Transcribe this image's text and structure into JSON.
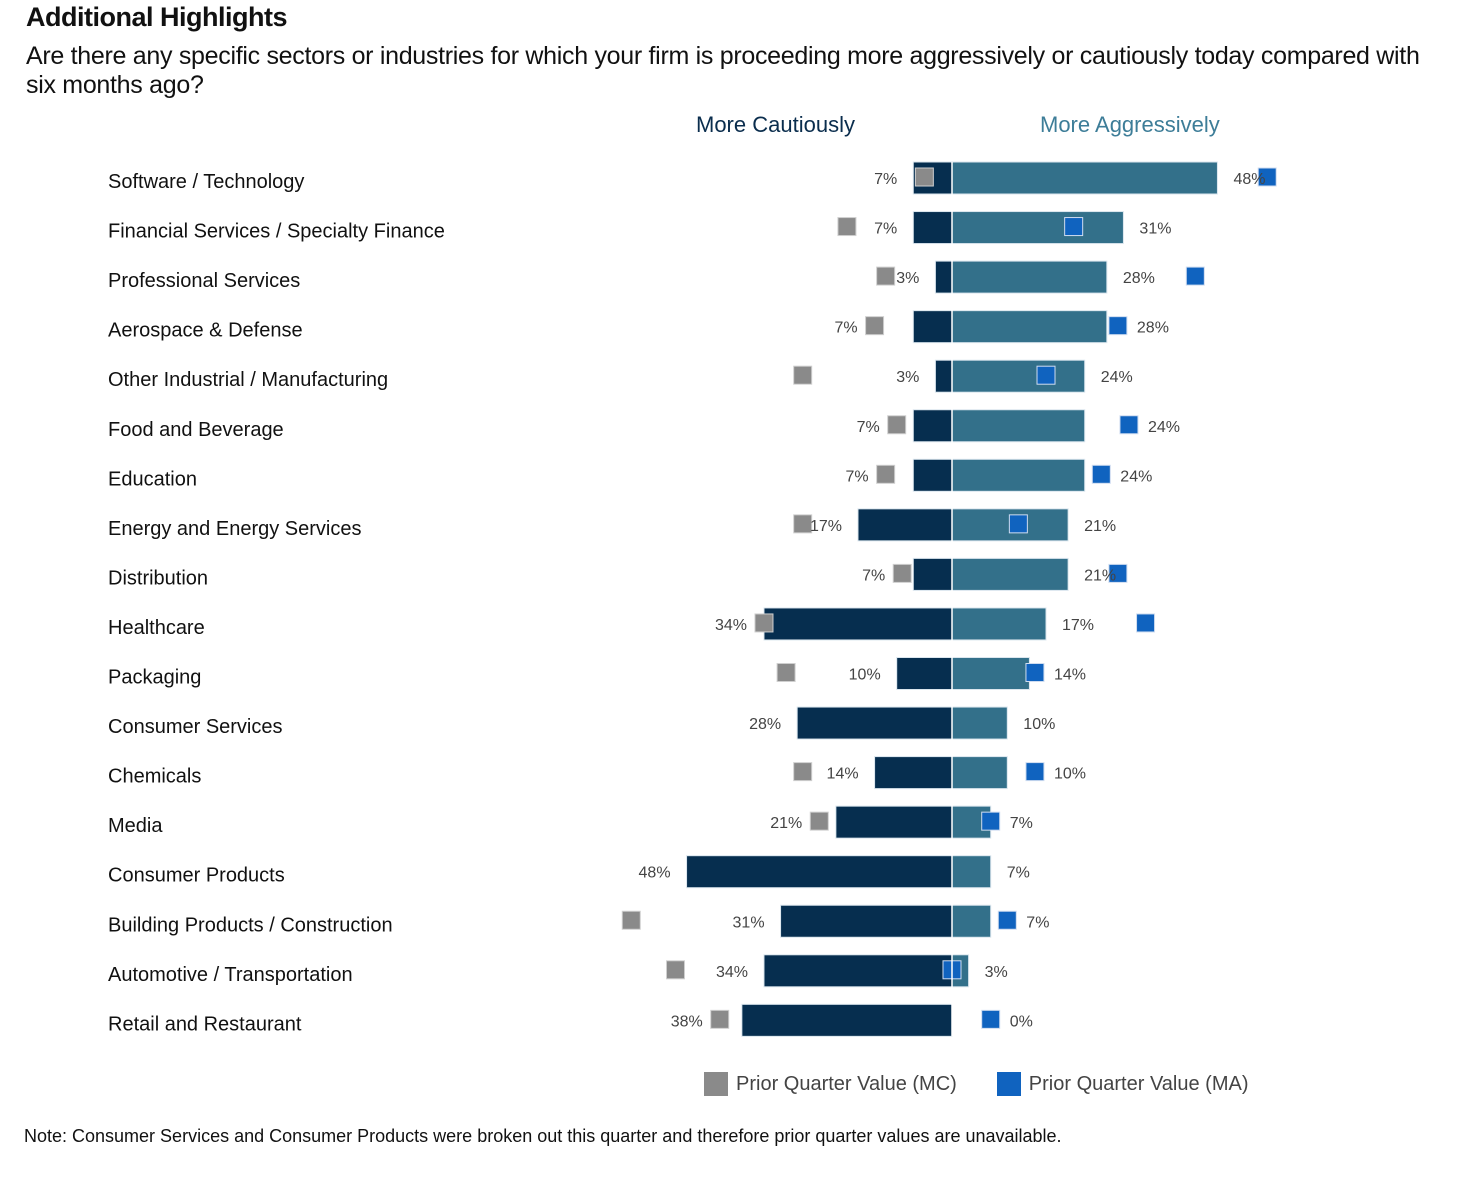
{
  "header": {
    "title": "Additional Highlights",
    "question": "Are there any specific sectors or industries for which your firm is proceeding more aggressively or cautiously today compared with six months ago?"
  },
  "legend": {
    "mc_label": "Prior Quarter Value (MC)",
    "ma_label": "Prior Quarter Value (MA)"
  },
  "note": "Note: Consumer Services and Consumer Products were broken out this quarter and therefore prior quarter values are unavailable.",
  "colors": {
    "cautious_bar": "#062e4f",
    "aggressive_bar": "#33708a",
    "prior_mc": "#8a8a8a",
    "prior_ma": "#1063bf",
    "mc_header": "#0a2d4d",
    "ma_header": "#3d7d98"
  },
  "chart_data": {
    "type": "bar",
    "orientation": "horizontal-diverging",
    "title": "Additional Highlights",
    "subtitle": "Are there any specific sectors or industries for which your firm is proceeding more aggressively or cautiously today compared with six months ago?",
    "xlabel": "",
    "ylabel": "",
    "unit": "%",
    "xlim": [
      -60,
      60
    ],
    "grid": false,
    "legend_position": "bottom",
    "column_headers": {
      "left": "More Cautiously",
      "right": "More Aggressively"
    },
    "categories": [
      "Software / Technology",
      "Financial Services / Specialty Finance",
      "Professional Services",
      "Aerospace & Defense",
      "Other Industrial / Manufacturing",
      "Food and Beverage",
      "Education",
      "Energy and Energy Services",
      "Distribution",
      "Healthcare",
      "Packaging",
      "Consumer Services",
      "Chemicals",
      "Media",
      "Consumer Products",
      "Building Products / Construction",
      "Automotive / Transportation",
      "Retail and Restaurant"
    ],
    "series": [
      {
        "name": "More Cautiously",
        "values": [
          7,
          7,
          3,
          7,
          3,
          7,
          7,
          17,
          7,
          34,
          10,
          28,
          14,
          21,
          48,
          31,
          34,
          38
        ]
      },
      {
        "name": "More Aggressively",
        "values": [
          48,
          31,
          28,
          28,
          24,
          24,
          24,
          21,
          21,
          17,
          14,
          10,
          10,
          7,
          7,
          7,
          3,
          0
        ]
      },
      {
        "name": "Prior Quarter Value (MC)",
        "values": [
          5,
          19,
          12,
          14,
          27,
          10,
          12,
          27,
          9,
          34,
          30,
          null,
          27,
          24,
          null,
          58,
          50,
          42
        ]
      },
      {
        "name": "Prior Quarter Value (MA)",
        "values": [
          57,
          22,
          44,
          30,
          17,
          32,
          27,
          12,
          30,
          35,
          15,
          null,
          15,
          7,
          null,
          10,
          0,
          7
        ]
      }
    ]
  }
}
